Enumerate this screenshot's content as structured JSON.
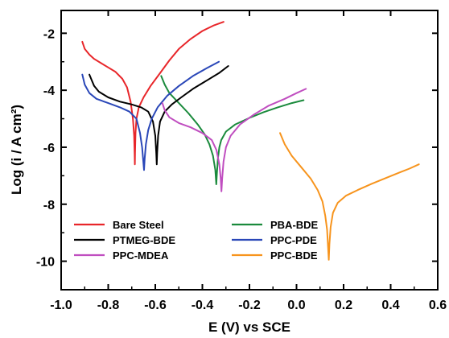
{
  "chart_data": {
    "type": "line",
    "title": "",
    "xlabel": "E (V) vs SCE",
    "ylabel": "Log (i / A cm²)",
    "xlim": [
      -1.0,
      0.6
    ],
    "ylim": [
      -11,
      -1.2
    ],
    "xticks": [
      -1.0,
      -0.8,
      -0.6,
      -0.4,
      -0.2,
      0.0,
      0.2,
      0.4,
      0.6
    ],
    "xtick_labels": [
      "-1.0",
      "-0.8",
      "-0.6",
      "-0.4",
      "-0.2",
      "0.0",
      "0.2",
      "0.4",
      "0.6"
    ],
    "yticks": [
      -2,
      -4,
      -6,
      -8,
      -10
    ],
    "ytick_labels": [
      "-2",
      "-4",
      "-6",
      "-8",
      "-10"
    ],
    "grid": false,
    "legend_position": "lower-left",
    "series": [
      {
        "name": "Bare Steel",
        "color": "#e8262a",
        "points": [
          [
            -0.91,
            -2.3
          ],
          [
            -0.9,
            -2.55
          ],
          [
            -0.88,
            -2.75
          ],
          [
            -0.86,
            -2.9
          ],
          [
            -0.83,
            -3.05
          ],
          [
            -0.8,
            -3.2
          ],
          [
            -0.77,
            -3.35
          ],
          [
            -0.74,
            -3.6
          ],
          [
            -0.72,
            -3.9
          ],
          [
            -0.705,
            -4.4
          ],
          [
            -0.695,
            -5.0
          ],
          [
            -0.69,
            -5.6
          ],
          [
            -0.688,
            -6.2
          ],
          [
            -0.687,
            -6.6
          ],
          [
            -0.686,
            -6.2
          ],
          [
            -0.684,
            -5.5
          ],
          [
            -0.68,
            -5.0
          ],
          [
            -0.67,
            -4.6
          ],
          [
            -0.65,
            -4.25
          ],
          [
            -0.62,
            -3.85
          ],
          [
            -0.58,
            -3.4
          ],
          [
            -0.54,
            -2.95
          ],
          [
            -0.5,
            -2.55
          ],
          [
            -0.45,
            -2.2
          ],
          [
            -0.4,
            -1.92
          ],
          [
            -0.35,
            -1.72
          ],
          [
            -0.31,
            -1.6
          ]
        ]
      },
      {
        "name": "PBA-BDE",
        "color": "#1a8a3c",
        "points": [
          [
            -0.575,
            -3.5
          ],
          [
            -0.56,
            -3.8
          ],
          [
            -0.54,
            -4.1
          ],
          [
            -0.5,
            -4.45
          ],
          [
            -0.46,
            -4.8
          ],
          [
            -0.42,
            -5.2
          ],
          [
            -0.39,
            -5.55
          ],
          [
            -0.37,
            -5.9
          ],
          [
            -0.355,
            -6.3
          ],
          [
            -0.345,
            -6.8
          ],
          [
            -0.341,
            -7.3
          ],
          [
            -0.338,
            -6.9
          ],
          [
            -0.334,
            -6.4
          ],
          [
            -0.328,
            -6.0
          ],
          [
            -0.32,
            -5.75
          ],
          [
            -0.3,
            -5.45
          ],
          [
            -0.26,
            -5.2
          ],
          [
            -0.2,
            -4.97
          ],
          [
            -0.14,
            -4.77
          ],
          [
            -0.08,
            -4.6
          ],
          [
            -0.02,
            -4.45
          ],
          [
            0.03,
            -4.35
          ]
        ]
      },
      {
        "name": "PTMEG-BDE",
        "color": "#000000",
        "points": [
          [
            -0.88,
            -3.45
          ],
          [
            -0.87,
            -3.65
          ],
          [
            -0.86,
            -3.85
          ],
          [
            -0.84,
            -4.05
          ],
          [
            -0.8,
            -4.25
          ],
          [
            -0.75,
            -4.4
          ],
          [
            -0.7,
            -4.5
          ],
          [
            -0.66,
            -4.6
          ],
          [
            -0.63,
            -4.75
          ],
          [
            -0.61,
            -5.1
          ],
          [
            -0.6,
            -5.6
          ],
          [
            -0.596,
            -6.2
          ],
          [
            -0.594,
            -6.6
          ],
          [
            -0.592,
            -6.2
          ],
          [
            -0.588,
            -5.6
          ],
          [
            -0.58,
            -5.1
          ],
          [
            -0.56,
            -4.75
          ],
          [
            -0.53,
            -4.5
          ],
          [
            -0.49,
            -4.25
          ],
          [
            -0.44,
            -3.95
          ],
          [
            -0.38,
            -3.65
          ],
          [
            -0.33,
            -3.4
          ],
          [
            -0.29,
            -3.15
          ]
        ]
      },
      {
        "name": "PPC-PDE",
        "color": "#2a47b8",
        "points": [
          [
            -0.91,
            -3.45
          ],
          [
            -0.9,
            -3.8
          ],
          [
            -0.88,
            -4.1
          ],
          [
            -0.85,
            -4.3
          ],
          [
            -0.8,
            -4.45
          ],
          [
            -0.75,
            -4.6
          ],
          [
            -0.71,
            -4.75
          ],
          [
            -0.68,
            -5.0
          ],
          [
            -0.665,
            -5.5
          ],
          [
            -0.656,
            -6.0
          ],
          [
            -0.651,
            -6.5
          ],
          [
            -0.648,
            -6.8
          ],
          [
            -0.645,
            -6.4
          ],
          [
            -0.64,
            -5.9
          ],
          [
            -0.63,
            -5.4
          ],
          [
            -0.615,
            -5.0
          ],
          [
            -0.59,
            -4.6
          ],
          [
            -0.55,
            -4.2
          ],
          [
            -0.5,
            -3.85
          ],
          [
            -0.44,
            -3.5
          ],
          [
            -0.38,
            -3.22
          ],
          [
            -0.33,
            -3.0
          ]
        ]
      },
      {
        "name": "PPC-MDEA",
        "color": "#c04ec0",
        "points": [
          [
            -0.57,
            -4.45
          ],
          [
            -0.56,
            -4.7
          ],
          [
            -0.54,
            -4.95
          ],
          [
            -0.5,
            -5.15
          ],
          [
            -0.45,
            -5.3
          ],
          [
            -0.4,
            -5.5
          ],
          [
            -0.36,
            -5.75
          ],
          [
            -0.34,
            -6.1
          ],
          [
            -0.328,
            -6.6
          ],
          [
            -0.322,
            -7.1
          ],
          [
            -0.319,
            -7.55
          ],
          [
            -0.316,
            -7.1
          ],
          [
            -0.31,
            -6.5
          ],
          [
            -0.3,
            -6.0
          ],
          [
            -0.28,
            -5.6
          ],
          [
            -0.24,
            -5.2
          ],
          [
            -0.18,
            -4.85
          ],
          [
            -0.12,
            -4.55
          ],
          [
            -0.05,
            -4.3
          ],
          [
            0.0,
            -4.1
          ],
          [
            0.04,
            -3.95
          ]
        ]
      },
      {
        "name": "PPC-BDE",
        "color": "#f7941d",
        "points": [
          [
            -0.07,
            -5.5
          ],
          [
            -0.05,
            -5.9
          ],
          [
            -0.02,
            -6.3
          ],
          [
            0.02,
            -6.7
          ],
          [
            0.06,
            -7.1
          ],
          [
            0.09,
            -7.5
          ],
          [
            0.11,
            -7.9
          ],
          [
            0.122,
            -8.4
          ],
          [
            0.13,
            -8.9
          ],
          [
            0.134,
            -9.5
          ],
          [
            0.137,
            -9.95
          ],
          [
            0.14,
            -9.4
          ],
          [
            0.145,
            -8.8
          ],
          [
            0.155,
            -8.3
          ],
          [
            0.175,
            -7.95
          ],
          [
            0.21,
            -7.7
          ],
          [
            0.26,
            -7.5
          ],
          [
            0.32,
            -7.28
          ],
          [
            0.38,
            -7.08
          ],
          [
            0.44,
            -6.88
          ],
          [
            0.48,
            -6.75
          ],
          [
            0.52,
            -6.6
          ]
        ]
      }
    ]
  }
}
